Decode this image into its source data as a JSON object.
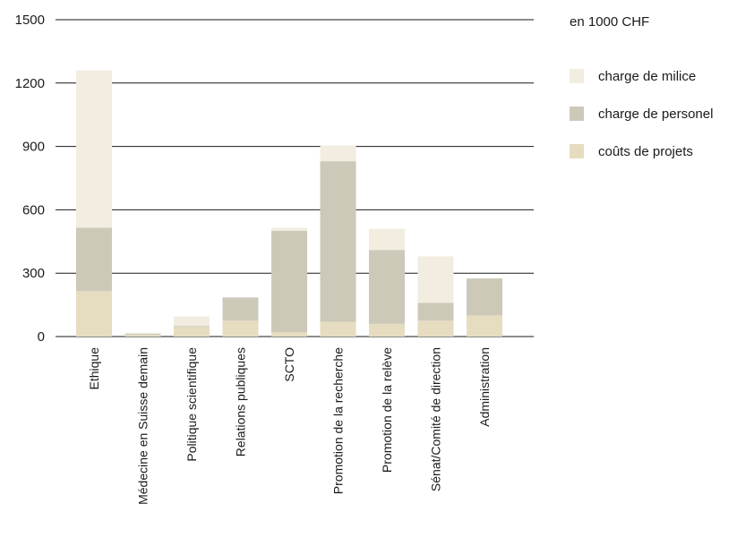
{
  "chart_data": {
    "type": "bar",
    "stacked": true,
    "unit": "en 1000 CHF",
    "categories": [
      "Ethique",
      "Médecine en Suisse demain",
      "Politique scientifique",
      "Relations publiques",
      "SCTO",
      "Promotion de la recherche",
      "Promotion de la relève",
      "Sénat/Comité de direction",
      "Administration"
    ],
    "series": [
      {
        "name": "coûts de projets",
        "color": "#e6dcc0",
        "values": [
          215,
          8,
          45,
          75,
          20,
          70,
          60,
          75,
          100
        ]
      },
      {
        "name": "charge de personel",
        "color": "#ccc9b9",
        "values": [
          300,
          5,
          5,
          110,
          480,
          760,
          350,
          85,
          175
        ]
      },
      {
        "name": "charge de milice",
        "color": "#f2ede0",
        "values": [
          745,
          5,
          45,
          0,
          15,
          75,
          100,
          220,
          0
        ]
      }
    ],
    "legend_order": [
      "charge de milice",
      "charge de personel",
      "coûts de projets"
    ],
    "ylim": [
      0,
      1500
    ],
    "yticks": [
      0,
      300,
      600,
      900,
      1200,
      1500
    ],
    "grid": true,
    "legend_position": "top-right"
  }
}
